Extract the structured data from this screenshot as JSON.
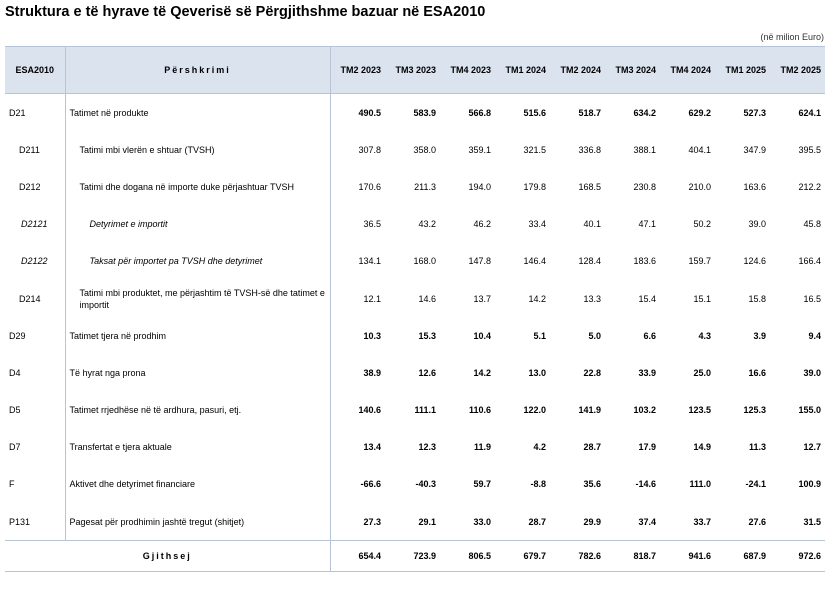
{
  "title": "Struktura e të hyrave të Qeverisë së Përgjithshme bazuar në ESA2010",
  "unit": "(në milion Euro)",
  "header": {
    "code": "ESA2010",
    "desc": "Përshkrimi",
    "cols": [
      "TM2 2023",
      "TM3 2023",
      "TM4 2023",
      "TM1 2024",
      "TM2 2024",
      "TM3 2024",
      "TM4 2024",
      "TM1 2025",
      "TM2 2025"
    ]
  },
  "rows": [
    {
      "code": "D21",
      "desc": "Tatimet në produkte",
      "level": 0,
      "bold": true,
      "values": [
        "490.5",
        "583.9",
        "566.8",
        "515.6",
        "518.7",
        "634.2",
        "629.2",
        "527.3",
        "624.1"
      ]
    },
    {
      "code": "D211",
      "desc": "Tatimi mbi vlerën e shtuar (TVSH)",
      "level": 1,
      "bold": false,
      "values": [
        "307.8",
        "358.0",
        "359.1",
        "321.5",
        "336.8",
        "388.1",
        "404.1",
        "347.9",
        "395.5"
      ]
    },
    {
      "code": "D212",
      "desc": "Tatimi dhe dogana në importe duke përjashtuar TVSH",
      "level": 1,
      "bold": false,
      "values": [
        "170.6",
        "211.3",
        "194.0",
        "179.8",
        "168.5",
        "230.8",
        "210.0",
        "163.6",
        "212.2"
      ]
    },
    {
      "code": "D2121",
      "desc": "Detyrimet e importit",
      "level": 2,
      "bold": false,
      "values": [
        "36.5",
        "43.2",
        "46.2",
        "33.4",
        "40.1",
        "47.1",
        "50.2",
        "39.0",
        "45.8"
      ]
    },
    {
      "code": "D2122",
      "desc": "Taksat për importet pa TVSH dhe detyrimet",
      "level": 2,
      "bold": false,
      "values": [
        "134.1",
        "168.0",
        "147.8",
        "146.4",
        "128.4",
        "183.6",
        "159.7",
        "124.6",
        "166.4"
      ]
    },
    {
      "code": "D214",
      "desc": "Tatimi mbi produktet, me përjashtim të TVSH-së dhe tatimet e importit",
      "level": 1,
      "bold": false,
      "values": [
        "12.1",
        "14.6",
        "13.7",
        "14.2",
        "13.3",
        "15.4",
        "15.1",
        "15.8",
        "16.5"
      ]
    },
    {
      "code": "D29",
      "desc": "Tatimet tjera në prodhim",
      "level": 0,
      "bold": true,
      "values": [
        "10.3",
        "15.3",
        "10.4",
        "5.1",
        "5.0",
        "6.6",
        "4.3",
        "3.9",
        "9.4"
      ]
    },
    {
      "code": "D4",
      "desc": "Të hyrat nga prona",
      "level": 0,
      "bold": true,
      "values": [
        "38.9",
        "12.6",
        "14.2",
        "13.0",
        "22.8",
        "33.9",
        "25.0",
        "16.6",
        "39.0"
      ]
    },
    {
      "code": "D5",
      "desc": "Tatimet rrjedhëse në të ardhura, pasuri, etj.",
      "level": 0,
      "bold": true,
      "values": [
        "140.6",
        "111.1",
        "110.6",
        "122.0",
        "141.9",
        "103.2",
        "123.5",
        "125.3",
        "155.0"
      ]
    },
    {
      "code": "D7",
      "desc": "Transfertat e tjera aktuale",
      "level": 0,
      "bold": true,
      "values": [
        "13.4",
        "12.3",
        "11.9",
        "4.2",
        "28.7",
        "17.9",
        "14.9",
        "11.3",
        "12.7"
      ]
    },
    {
      "code": "F",
      "desc": "Aktivet dhe detyrimet financiare",
      "level": 0,
      "bold": true,
      "values": [
        "-66.6",
        "-40.3",
        "59.7",
        "-8.8",
        "35.6",
        "-14.6",
        "111.0",
        "-24.1",
        "100.9"
      ]
    },
    {
      "code": "P131",
      "desc": "Pagesat për prodhimin jashtë tregut (shitjet)",
      "level": 0,
      "bold": true,
      "values": [
        "27.3",
        "29.1",
        "33.0",
        "28.7",
        "29.9",
        "37.4",
        "33.7",
        "27.6",
        "31.5"
      ]
    }
  ],
  "total": {
    "label": "Gjithsej",
    "values": [
      "654.4",
      "723.9",
      "806.5",
      "679.7",
      "782.6",
      "818.7",
      "941.6",
      "687.9",
      "972.6"
    ]
  }
}
